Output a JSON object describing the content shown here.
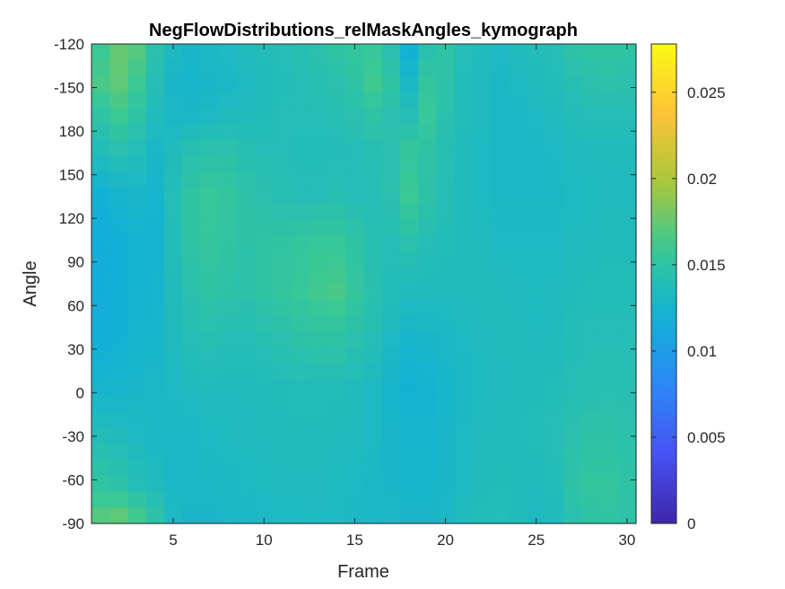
{
  "chart_data": {
    "type": "heatmap",
    "title": "NegFlowDistributions_relMaskAngles_kymograph",
    "xlabel": "Frame",
    "ylabel": "Angle",
    "x_ticks": [
      "5",
      "10",
      "15",
      "20",
      "25",
      "30"
    ],
    "x_tick_values": [
      5,
      10,
      15,
      20,
      25,
      30
    ],
    "xlim": [
      0.5,
      30.5
    ],
    "y_tick_labels": [
      "-120",
      "-150",
      "180",
      "150",
      "120",
      "90",
      "60",
      "30",
      "0",
      "-30",
      "-60",
      "-90"
    ],
    "colormap": "parula",
    "color_range": [
      0,
      0.0278
    ],
    "colorbar_ticks": [
      "0.025",
      "0.02",
      "0.015",
      "0.01",
      "0.005",
      "0"
    ],
    "colorbar_tick_values": [
      0.025,
      0.02,
      0.015,
      0.01,
      0.005,
      0
    ],
    "frames": 30,
    "rows": 30,
    "anchor_rows": [
      0,
      2,
      4,
      6,
      9,
      12,
      15,
      18,
      21,
      24,
      27,
      29
    ],
    "anchor_values": [
      [
        0.016,
        0.0175,
        0.0168,
        0.0145,
        0.0132,
        0.0128,
        0.013,
        0.0132,
        0.0135,
        0.0138,
        0.014,
        0.0142,
        0.0145,
        0.015,
        0.0155,
        0.0158,
        0.0145,
        0.012,
        0.0145,
        0.015,
        0.014,
        0.0135,
        0.0132,
        0.0135,
        0.0138,
        0.014,
        0.0148,
        0.015,
        0.0152,
        0.015
      ],
      [
        0.0165,
        0.0172,
        0.016,
        0.014,
        0.0128,
        0.0126,
        0.0128,
        0.013,
        0.0132,
        0.0135,
        0.0138,
        0.014,
        0.0142,
        0.0145,
        0.015,
        0.0162,
        0.015,
        0.013,
        0.0155,
        0.0148,
        0.0138,
        0.0134,
        0.013,
        0.0132,
        0.0135,
        0.0138,
        0.0142,
        0.0145,
        0.0146,
        0.0145
      ],
      [
        0.015,
        0.016,
        0.015,
        0.0135,
        0.013,
        0.013,
        0.0132,
        0.0135,
        0.0135,
        0.0137,
        0.014,
        0.014,
        0.014,
        0.0142,
        0.0145,
        0.015,
        0.0145,
        0.014,
        0.0158,
        0.0145,
        0.0138,
        0.0134,
        0.013,
        0.013,
        0.0132,
        0.0135,
        0.0138,
        0.014,
        0.014,
        0.014
      ],
      [
        0.0138,
        0.0145,
        0.014,
        0.013,
        0.0135,
        0.0142,
        0.0145,
        0.0145,
        0.0142,
        0.014,
        0.014,
        0.0138,
        0.0138,
        0.0138,
        0.014,
        0.0142,
        0.0145,
        0.0155,
        0.015,
        0.0142,
        0.0136,
        0.0132,
        0.013,
        0.013,
        0.013,
        0.0132,
        0.0134,
        0.0135,
        0.0135,
        0.0135
      ],
      [
        0.012,
        0.0125,
        0.0128,
        0.0125,
        0.014,
        0.0152,
        0.0158,
        0.0155,
        0.0148,
        0.0145,
        0.0142,
        0.014,
        0.014,
        0.0142,
        0.014,
        0.014,
        0.0145,
        0.016,
        0.0148,
        0.014,
        0.0135,
        0.0132,
        0.013,
        0.013,
        0.013,
        0.013,
        0.0132,
        0.0133,
        0.0134,
        0.0134
      ],
      [
        0.0115,
        0.0118,
        0.0122,
        0.0122,
        0.0138,
        0.015,
        0.0155,
        0.0152,
        0.0148,
        0.015,
        0.0152,
        0.0155,
        0.0158,
        0.0158,
        0.015,
        0.0142,
        0.014,
        0.0145,
        0.014,
        0.0138,
        0.0135,
        0.0135,
        0.0132,
        0.0132,
        0.0132,
        0.0132,
        0.0134,
        0.0135,
        0.0136,
        0.0136
      ],
      [
        0.0115,
        0.0118,
        0.0122,
        0.0124,
        0.0136,
        0.0145,
        0.015,
        0.0148,
        0.0146,
        0.015,
        0.0155,
        0.0158,
        0.0162,
        0.0165,
        0.0155,
        0.0145,
        0.0138,
        0.0135,
        0.0135,
        0.0135,
        0.0135,
        0.0136,
        0.0135,
        0.0134,
        0.0133,
        0.0134,
        0.0136,
        0.0138,
        0.0138,
        0.0138
      ],
      [
        0.0118,
        0.012,
        0.0124,
        0.0126,
        0.0134,
        0.014,
        0.0142,
        0.014,
        0.014,
        0.0142,
        0.0145,
        0.0148,
        0.015,
        0.015,
        0.0145,
        0.014,
        0.0132,
        0.0126,
        0.0128,
        0.013,
        0.0132,
        0.0134,
        0.0135,
        0.0135,
        0.0134,
        0.0135,
        0.0138,
        0.014,
        0.014,
        0.014
      ],
      [
        0.0125,
        0.0126,
        0.0128,
        0.013,
        0.0132,
        0.0134,
        0.0135,
        0.0135,
        0.0135,
        0.0136,
        0.0137,
        0.0138,
        0.0138,
        0.0138,
        0.0136,
        0.0132,
        0.0126,
        0.012,
        0.0122,
        0.0126,
        0.013,
        0.0133,
        0.0134,
        0.0135,
        0.0136,
        0.0138,
        0.014,
        0.0142,
        0.0143,
        0.0142
      ],
      [
        0.0138,
        0.0135,
        0.0132,
        0.013,
        0.013,
        0.013,
        0.0132,
        0.0133,
        0.0134,
        0.0135,
        0.0136,
        0.0136,
        0.0136,
        0.0135,
        0.0134,
        0.0132,
        0.0128,
        0.0125,
        0.0125,
        0.0128,
        0.0132,
        0.0135,
        0.0136,
        0.0136,
        0.0138,
        0.014,
        0.0145,
        0.0148,
        0.0148,
        0.0146
      ],
      [
        0.0152,
        0.0148,
        0.014,
        0.0135,
        0.013,
        0.013,
        0.013,
        0.0131,
        0.0132,
        0.0133,
        0.0134,
        0.0134,
        0.0134,
        0.0133,
        0.0132,
        0.013,
        0.0128,
        0.0126,
        0.0126,
        0.0128,
        0.0132,
        0.0136,
        0.0137,
        0.0136,
        0.0135,
        0.0138,
        0.0148,
        0.0155,
        0.0155,
        0.015
      ],
      [
        0.0168,
        0.0172,
        0.0162,
        0.0148,
        0.0132,
        0.0128,
        0.0128,
        0.013,
        0.013,
        0.0131,
        0.0132,
        0.0132,
        0.0133,
        0.0132,
        0.0131,
        0.013,
        0.013,
        0.0128,
        0.0128,
        0.013,
        0.0134,
        0.0138,
        0.0139,
        0.0137,
        0.0132,
        0.0135,
        0.0145,
        0.015,
        0.0152,
        0.0148
      ]
    ]
  }
}
